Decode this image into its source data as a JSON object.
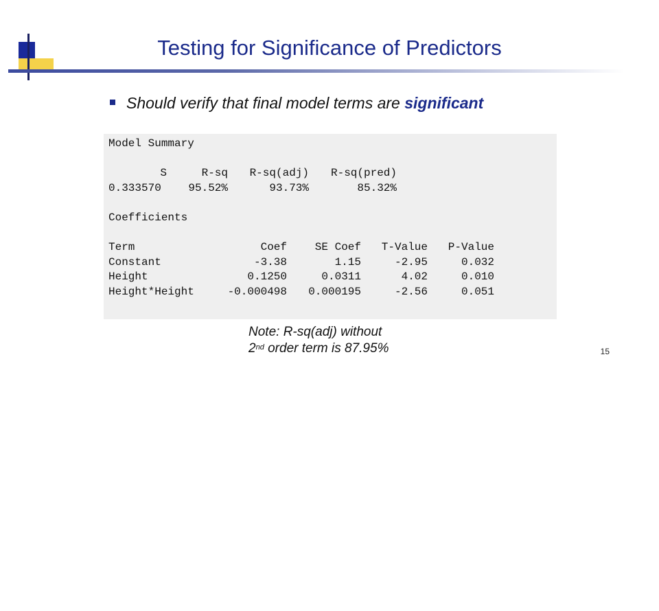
{
  "slide": {
    "title": "Testing for Significance of Predictors",
    "bullet_text": "Should verify that final model terms are ",
    "bullet_emphasis": "significant",
    "page_number": "15",
    "accent_color": "#1a2a8a"
  },
  "model_summary": {
    "heading": "Model Summary",
    "headers": [
      "S",
      "R-sq",
      "R-sq(adj)",
      "R-sq(pred)"
    ],
    "values": [
      "0.333570",
      "95.52%",
      "93.73%",
      "85.32%"
    ]
  },
  "coefficients": {
    "heading": "Coefficients",
    "headers": [
      "Term",
      "Coef",
      "SE Coef",
      "T-Value",
      "P-Value"
    ],
    "rows": [
      [
        "Constant",
        "-3.38",
        "1.15",
        "-2.95",
        "0.032"
      ],
      [
        "Height",
        "0.1250",
        "0.0311",
        "4.02",
        "0.010"
      ],
      [
        "Height*Height",
        "-0.000498",
        "0.000195",
        "-2.56",
        "0.051"
      ]
    ]
  },
  "note": {
    "line1": "Note: R-sq(adj) without",
    "line2_prefix": "2",
    "line2_sup": "nd",
    "line2_suffix": " order term is 87.95%"
  }
}
